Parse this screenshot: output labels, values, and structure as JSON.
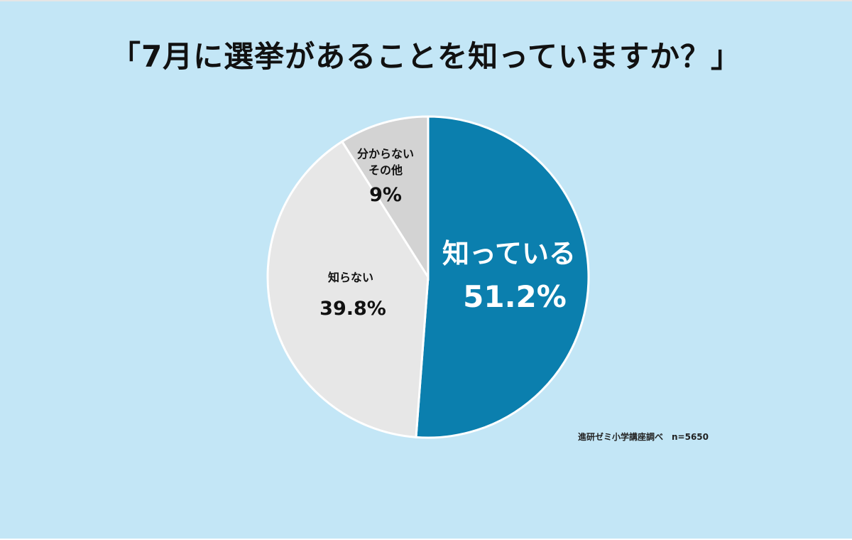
{
  "chart_data": {
    "type": "pie",
    "title": "「7月に選挙があることを知っていますか？」",
    "slices": [
      {
        "label": "知っている",
        "value": 51.2,
        "value_label": "51.2%",
        "color": "#0b7fae",
        "text_color": "#ffffff"
      },
      {
        "label": "知らない",
        "value": 39.8,
        "value_label": "39.8%",
        "color": "#e7e7e7",
        "text_color": "#111111"
      },
      {
        "label_lines": [
          "分からない",
          "その他"
        ],
        "value": 9,
        "value_label": "9%",
        "color": "#d3d3d3",
        "text_color": "#111111"
      }
    ],
    "start": "12 o'clock",
    "direction": "clockwise",
    "legend": "none",
    "source_note": "進研ゼミ小学講座調べ　n=5650"
  },
  "colors": {
    "background": "#c3e6f6",
    "slice_border": "#ffffff"
  }
}
